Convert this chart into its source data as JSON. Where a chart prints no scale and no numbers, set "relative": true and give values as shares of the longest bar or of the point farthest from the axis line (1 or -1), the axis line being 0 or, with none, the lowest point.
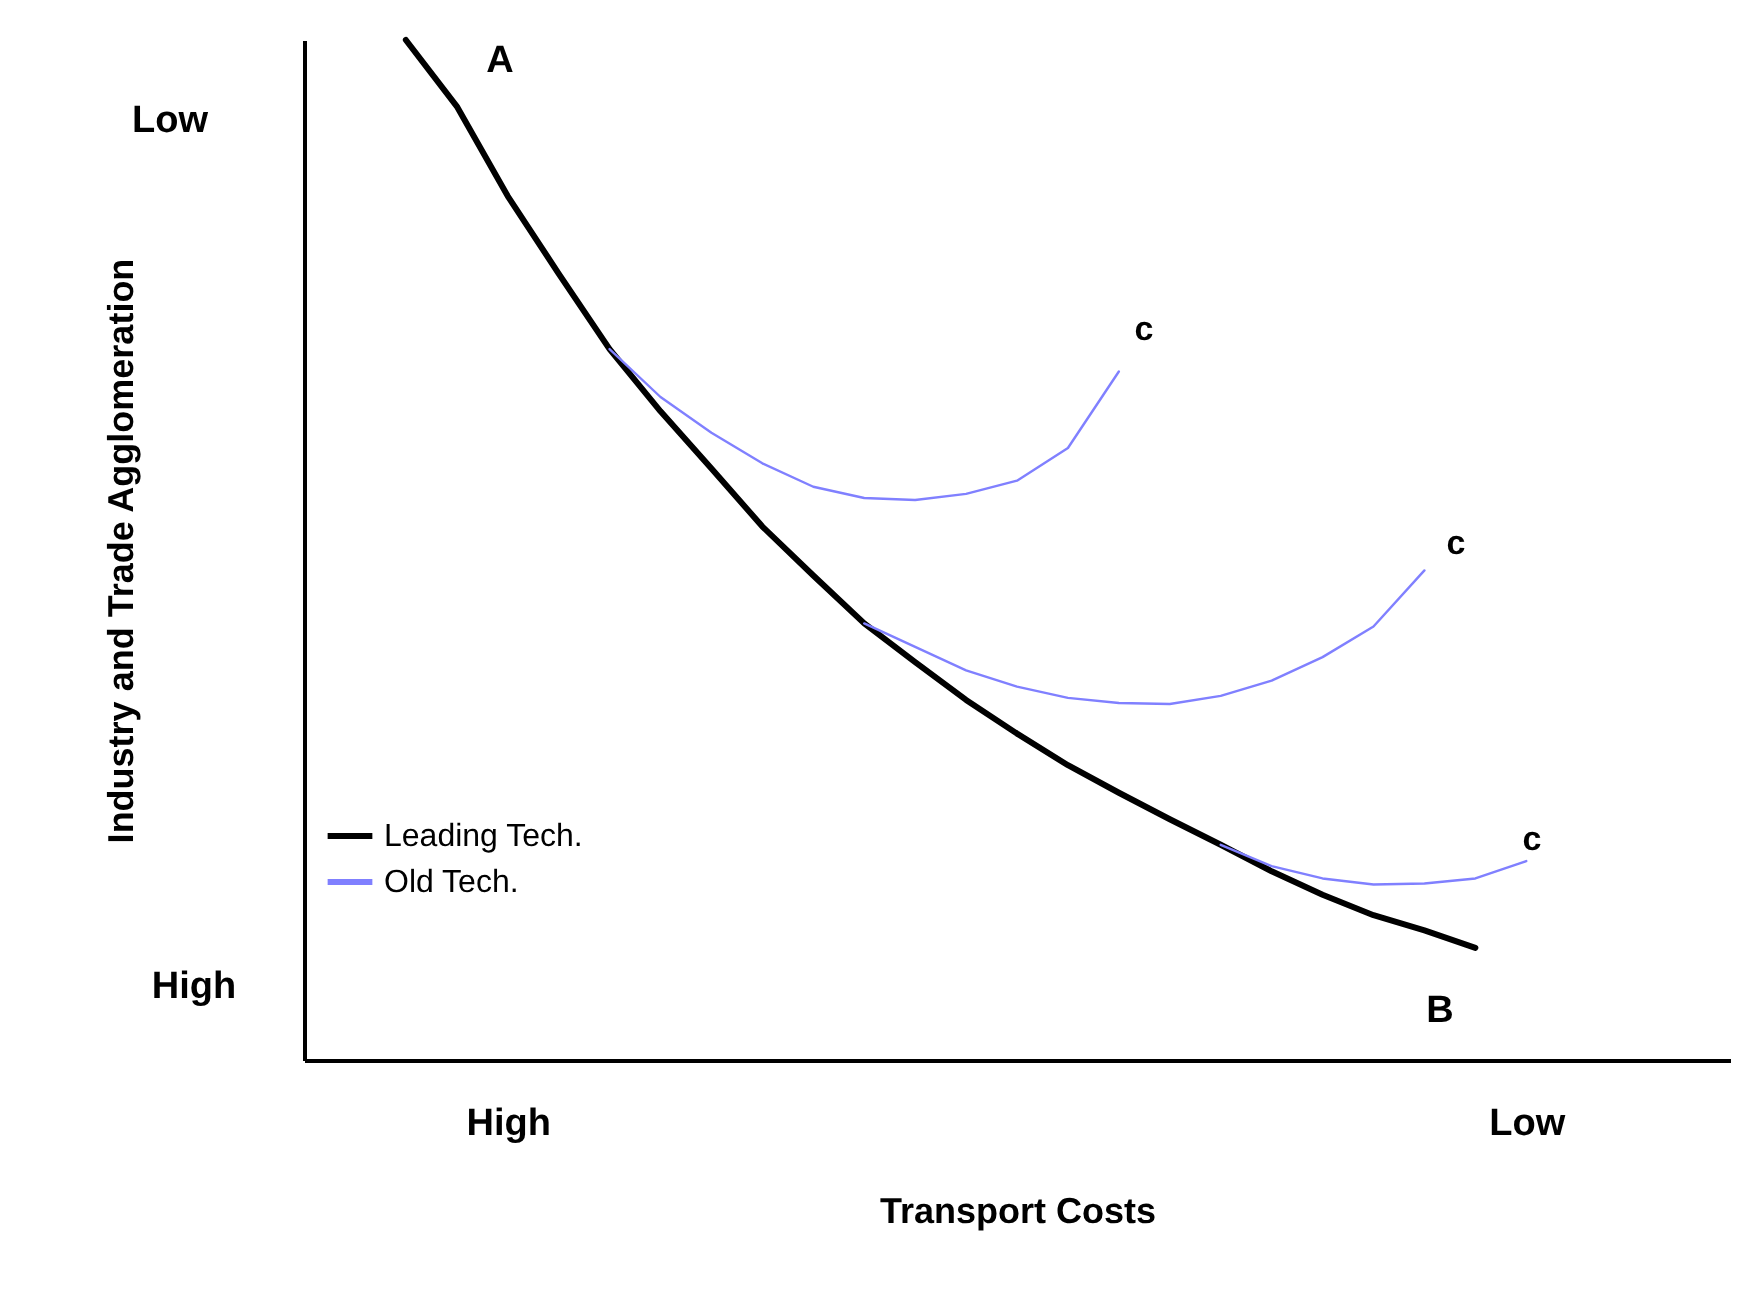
{
  "chart_data": {
    "type": "line",
    "xlabel": "Transport Costs",
    "ylabel": "Industry and Trade Agglomeration",
    "relative": true,
    "categories": [
      null,
      null,
      null,
      null,
      "High",
      null,
      null,
      null,
      null,
      null,
      null,
      null,
      null,
      null,
      null,
      null,
      null,
      null,
      null,
      null,
      null,
      null,
      null,
      null,
      "Low",
      null,
      null,
      null,
      null
    ],
    "series": [
      {
        "name": "Leading Tech.",
        "color": "#000000",
        "values": [
          null,
          null,
          1.0,
          0.935,
          0.847,
          0.771,
          0.697,
          0.636,
          0.58,
          0.523,
          0.475,
          0.428,
          0.39,
          0.353,
          0.32,
          0.289,
          0.262,
          0.236,
          0.211,
          0.185,
          0.162,
          0.142,
          0.127,
          0.11,
          null,
          null,
          null,
          null,
          null
        ]
      },
      {
        "name": "Old Tech.",
        "color": "#8080ff",
        "values": [
          null,
          null,
          null,
          null,
          null,
          null,
          0.697,
          0.65,
          0.615,
          0.585,
          0.562,
          0.551,
          0.549,
          0.555,
          0.568,
          0.6,
          0.675,
          null,
          null,
          null,
          null,
          null,
          null,
          null,
          null,
          null,
          null,
          null,
          null
        ]
      },
      {
        "color": "#8080ff",
        "values": [
          null,
          null,
          null,
          null,
          null,
          null,
          null,
          null,
          null,
          null,
          null,
          0.428,
          0.405,
          0.382,
          0.366,
          0.355,
          0.35,
          0.349,
          0.357,
          0.372,
          0.395,
          0.425,
          0.48,
          null,
          null,
          null,
          null,
          null,
          null
        ]
      },
      {
        "color": "#8080ff",
        "values": [
          null,
          null,
          null,
          null,
          null,
          null,
          null,
          null,
          null,
          null,
          null,
          null,
          null,
          null,
          null,
          null,
          null,
          null,
          0.211,
          0.19,
          0.178,
          0.172,
          0.173,
          0.178,
          0.195,
          null,
          null,
          null,
          null
        ]
      }
    ],
    "annotations": [
      "Low",
      "A",
      "c",
      "c",
      "c",
      "B",
      "High"
    ],
    "legend": "bottom left"
  }
}
